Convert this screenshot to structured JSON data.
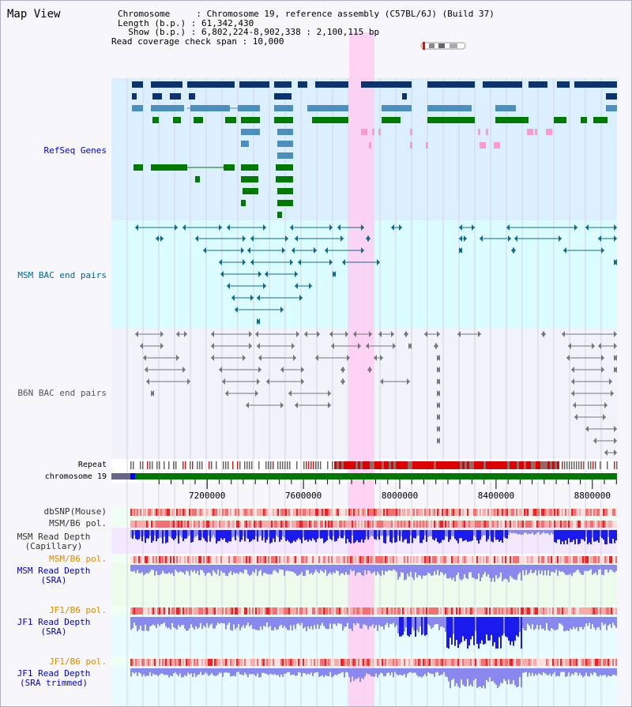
{
  "header": {
    "title": "Map View",
    "chromosome_line": "Chromosome     : Chromosome 19, reference assembly (C57BL/6J) (Build 37)",
    "length_line": "Length (b.p.) : 61,342,430",
    "show_line": "  Show (b.p.) : 6,802,224-8,902,338 : 2,100,115 bp",
    "span_line": "Read coverage check span : 10,000"
  },
  "tracks": {
    "refseq": {
      "label": "RefSeq Genes",
      "color": "#0000cc"
    },
    "msm_bac": {
      "label": "MSM BAC end pairs",
      "color": "#006699"
    },
    "b6n_bac": {
      "label": "B6N BAC end pairs",
      "color": "#555555"
    },
    "repeat": {
      "label": "Repeat"
    },
    "chromosome": {
      "label": "chromosome 19"
    },
    "dbsnp": {
      "label": "dbSNP(Mouse)"
    },
    "msm_b6_pol_1": {
      "label": "MSM/B6 pol."
    },
    "msm_depth_cap": {
      "label_line1": "MSM Read Depth",
      "label_line2": "(Capillary)"
    },
    "msm_b6_pol_2": {
      "label": "MSM/B6 pol.",
      "color": "#e08a00"
    },
    "msm_depth_sra": {
      "label_line1": "MSM Read Depth",
      "label_line2": "(SRA)",
      "color": "#0000cc"
    },
    "jf1_b6_pol_1": {
      "label": "JF1/B6 pol.",
      "color": "#e08a00"
    },
    "jf1_depth_sra": {
      "label_line1": "JF1 Read Depth",
      "label_line2": "(SRA)",
      "color": "#0000cc"
    },
    "jf1_b6_pol_2": {
      "label": "JF1/B6 pol.",
      "color": "#e08a00"
    },
    "jf1_depth_trim": {
      "label_line1": "JF1 Read Depth",
      "label_line2": "(SRA trimmed)",
      "color": "#0000cc"
    }
  },
  "axis": {
    "ticks": [
      "7200000",
      "7600000",
      "8000000",
      "8400000",
      "8800000"
    ],
    "tick_values": [
      7200000,
      7600000,
      8000000,
      8400000,
      8800000
    ],
    "view_start": 6802224,
    "view_end": 8902338
  },
  "highlight": {
    "start": 7790000,
    "end": 7895000
  },
  "colors": {
    "refseq_bg": "#dcefff",
    "msm_bg": "#dcfdff",
    "b6n_bg": "#f2f2fa",
    "highlight": "#ffccf2",
    "gene_dark": "#0b3370",
    "gene_mid": "#4a8fbe",
    "gene_green": "#007a00",
    "gene_pink": "#ff99cc",
    "bac_msm": "#116a8a",
    "bac_b6n": "#777777",
    "depth_dark": "#1a1aee",
    "depth_light": "#8888ee"
  }
}
